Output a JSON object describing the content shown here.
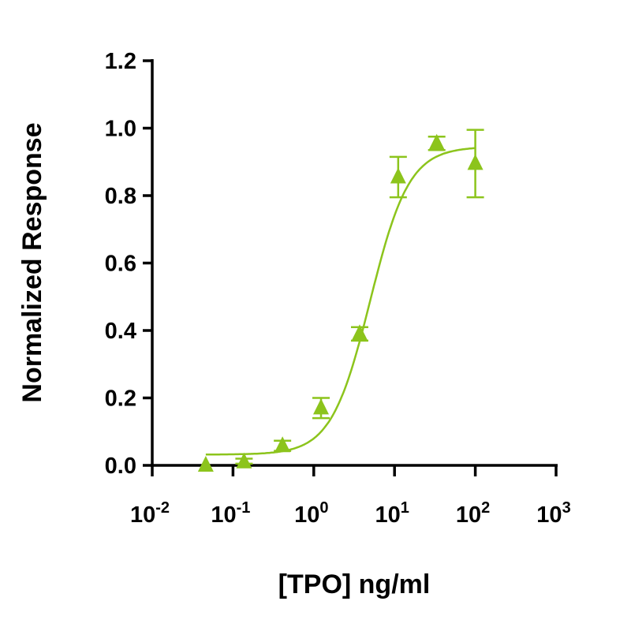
{
  "chart_data": {
    "type": "scatter",
    "title": "",
    "xlabel": "[TPO] ng/ml",
    "ylabel": "Normalized Response",
    "x_scale": "log",
    "xlim": [
      0.01,
      1000
    ],
    "ylim": [
      0,
      1.2
    ],
    "x_ticks": [
      {
        "base": "10",
        "exp": "-2"
      },
      {
        "base": "10",
        "exp": "-1"
      },
      {
        "base": "10",
        "exp": "0"
      },
      {
        "base": "10",
        "exp": "1"
      },
      {
        "base": "10",
        "exp": "2"
      },
      {
        "base": "10",
        "exp": "3"
      }
    ],
    "y_ticks": [
      "0.0",
      "0.2",
      "0.4",
      "0.6",
      "0.8",
      "1.0",
      "1.2"
    ],
    "grid": false,
    "color": "#8cc41c",
    "marker": "triangle",
    "points": [
      {
        "x": 0.046,
        "y": 0.0,
        "err_low": 0.0,
        "err_high": 0.0
      },
      {
        "x": 0.137,
        "y": 0.01,
        "err_low": 0.005,
        "err_high": 0.01
      },
      {
        "x": 0.41,
        "y": 0.058,
        "err_low": 0.015,
        "err_high": 0.015
      },
      {
        "x": 1.23,
        "y": 0.17,
        "err_low": 0.03,
        "err_high": 0.03
      },
      {
        "x": 3.7,
        "y": 0.39,
        "err_low": 0.02,
        "err_high": 0.02
      },
      {
        "x": 11.1,
        "y": 0.855,
        "err_low": 0.06,
        "err_high": 0.06
      },
      {
        "x": 33.3,
        "y": 0.955,
        "err_low": 0.02,
        "err_high": 0.02
      },
      {
        "x": 100,
        "y": 0.895,
        "err_low": 0.1,
        "err_high": 0.1
      }
    ],
    "fit": {
      "model": "4PL",
      "bottom": 0.032,
      "top": 0.945,
      "ec50": 5.0,
      "hill": 1.8,
      "x_range": [
        0.046,
        100
      ]
    }
  }
}
